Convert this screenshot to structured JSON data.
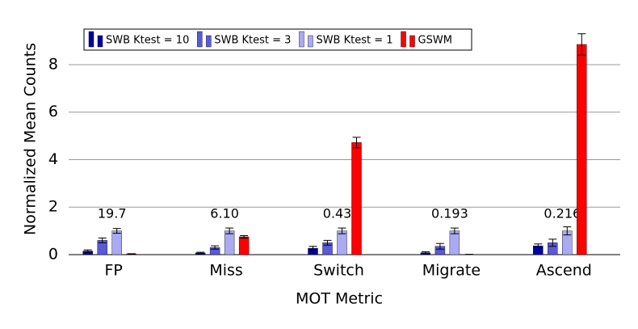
{
  "chart_data": {
    "type": "bar",
    "categories": [
      "FP",
      "Miss",
      "Switch",
      "Migrate",
      "Ascend"
    ],
    "series": [
      {
        "name": "SWB Ktest = 10",
        "color": "#0000a8",
        "values": [
          0.15,
          0.07,
          0.27,
          0.08,
          0.37
        ],
        "errors": [
          0.05,
          0.03,
          0.08,
          0.04,
          0.08
        ]
      },
      {
        "name": "SWB Ktest = 3",
        "color": "#5a5ad8",
        "values": [
          0.6,
          0.3,
          0.5,
          0.35,
          0.5
        ],
        "errors": [
          0.1,
          0.07,
          0.1,
          0.12,
          0.15
        ]
      },
      {
        "name": "SWB Ktest = 1",
        "color": "#aaaaf2",
        "values": [
          1.0,
          1.0,
          1.0,
          1.0,
          1.0
        ],
        "errors": [
          0.1,
          0.12,
          0.12,
          0.12,
          0.17
        ]
      },
      {
        "name": "GSWM",
        "color": "#ff0000",
        "values": [
          0.03,
          0.75,
          4.72,
          0.01,
          8.85
        ],
        "errors": [
          0.01,
          0.05,
          0.22,
          0.0,
          0.45
        ]
      }
    ],
    "annotations": [
      "19.7",
      "6.10",
      "0.43",
      "0.193",
      "0.216"
    ],
    "xlabel": "MOT Metric",
    "ylabel": "Normalized Mean Counts",
    "ylim": [
      0,
      9.7
    ],
    "yticks": [
      0,
      2,
      4,
      6,
      8
    ],
    "grid": true,
    "legend": "top-left"
  }
}
